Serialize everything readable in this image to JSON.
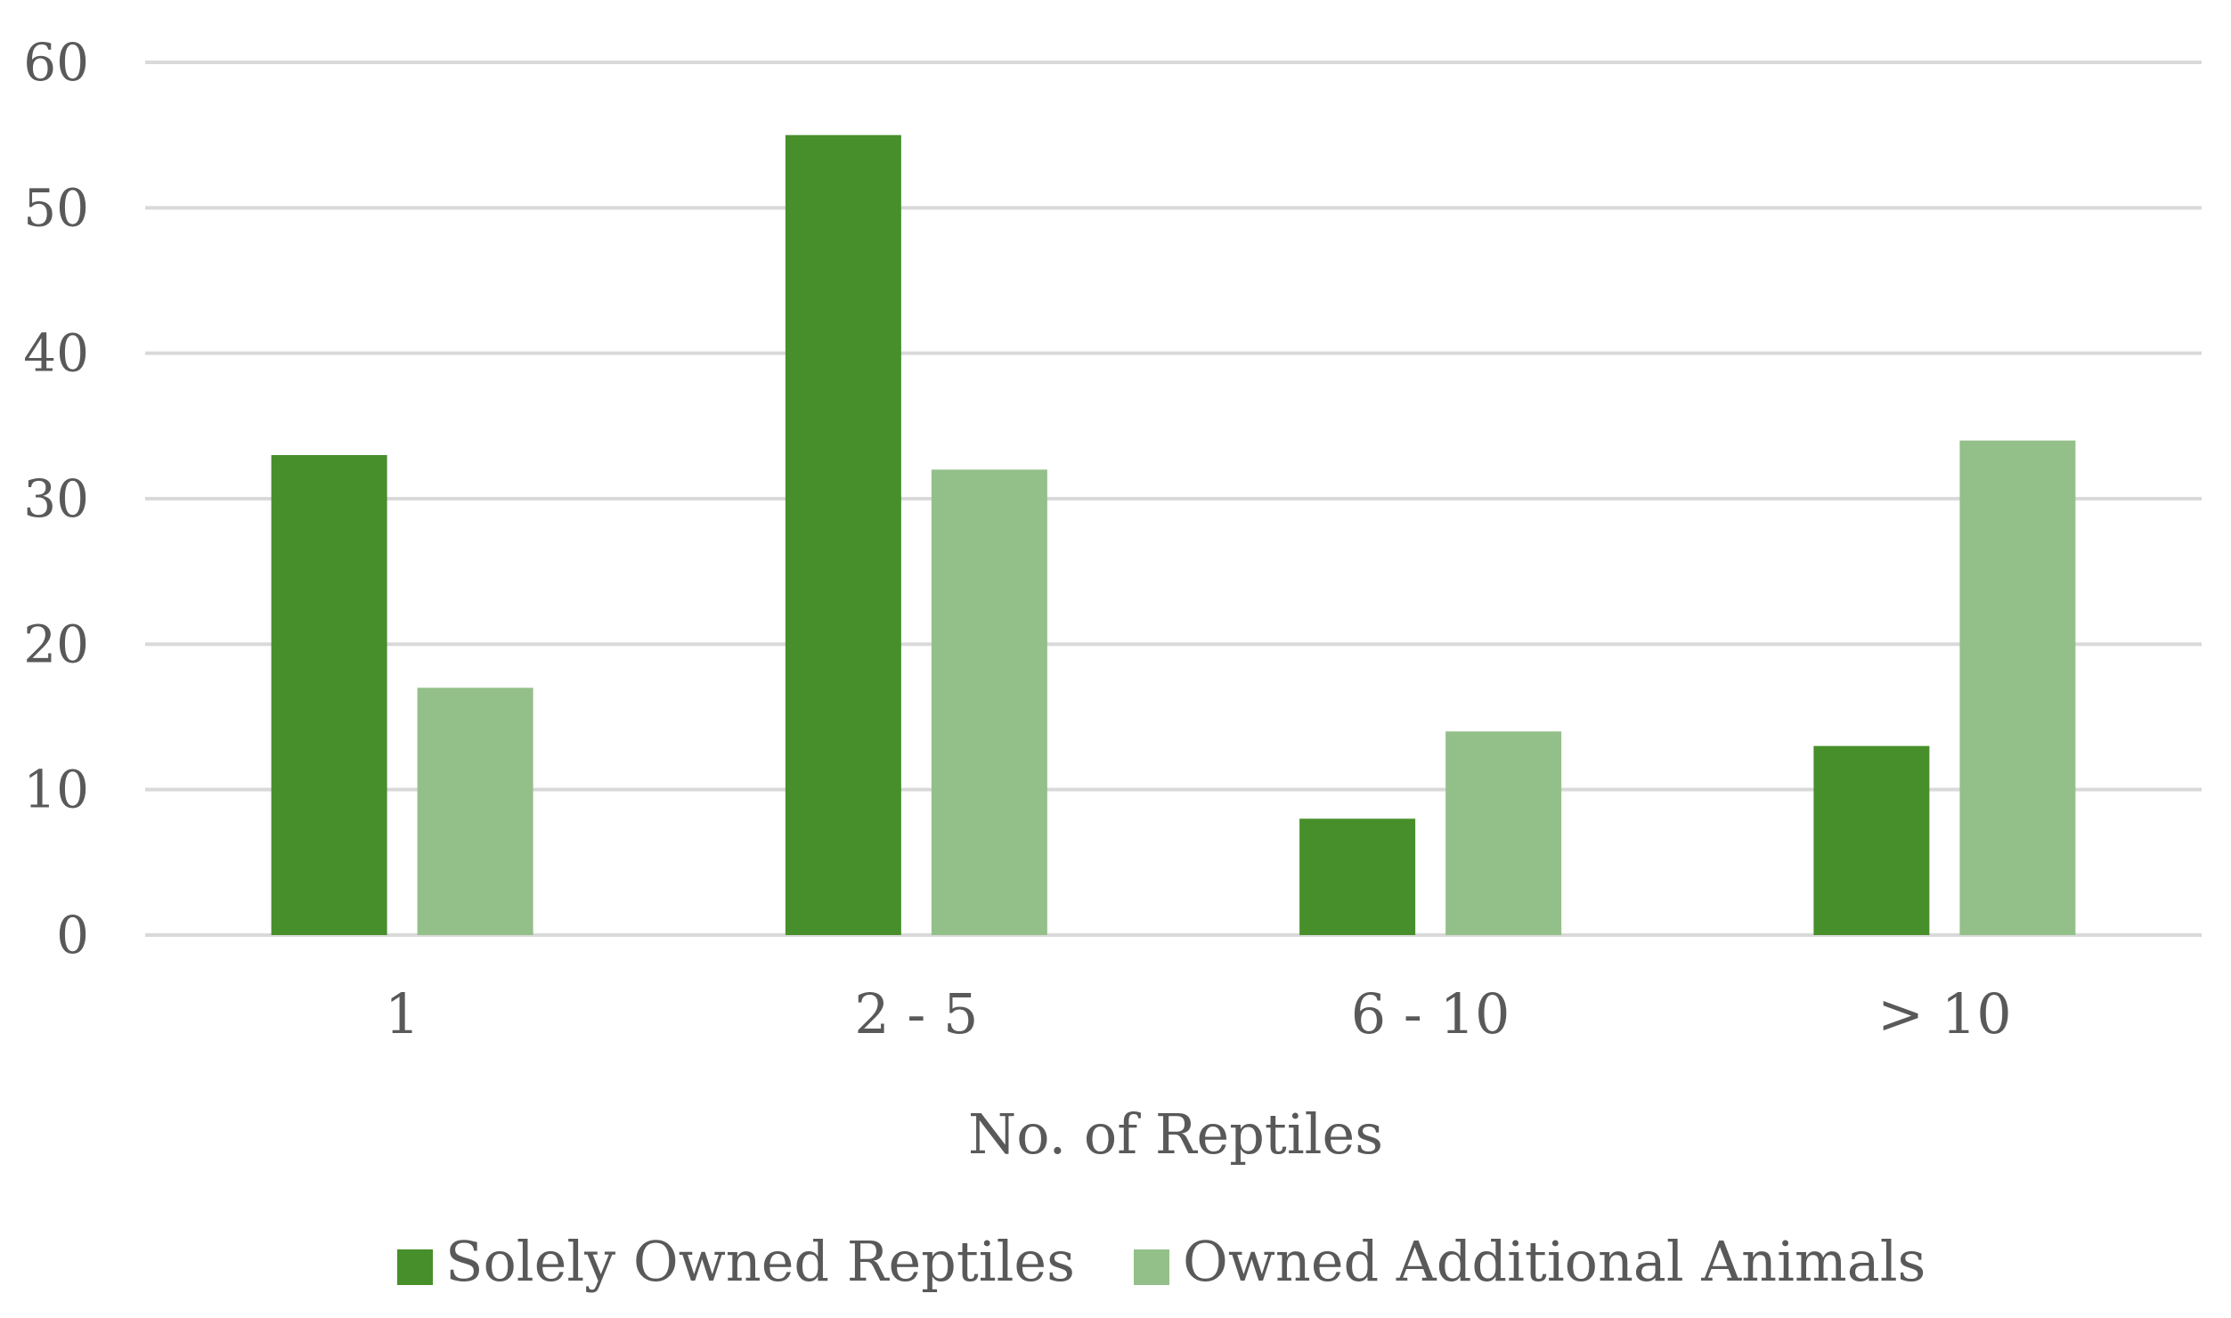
{
  "chart_data": {
    "type": "bar",
    "title": "",
    "xlabel": "No. of Reptiles",
    "ylabel": "",
    "categories": [
      "1",
      "2 - 5",
      "6 - 10",
      "> 10"
    ],
    "series": [
      {
        "name": "Solely Owned Reptiles",
        "color": "#478F2A",
        "values": [
          33,
          55,
          8,
          13
        ]
      },
      {
        "name": "Owned Additional Animals",
        "color": "#93C089",
        "values": [
          17,
          32,
          14,
          34
        ]
      }
    ],
    "ylim": [
      0,
      60
    ],
    "yticks": [
      "0",
      "10",
      "20",
      "30",
      "40",
      "50",
      "60"
    ],
    "grid": true,
    "legend": "bottom-center"
  }
}
